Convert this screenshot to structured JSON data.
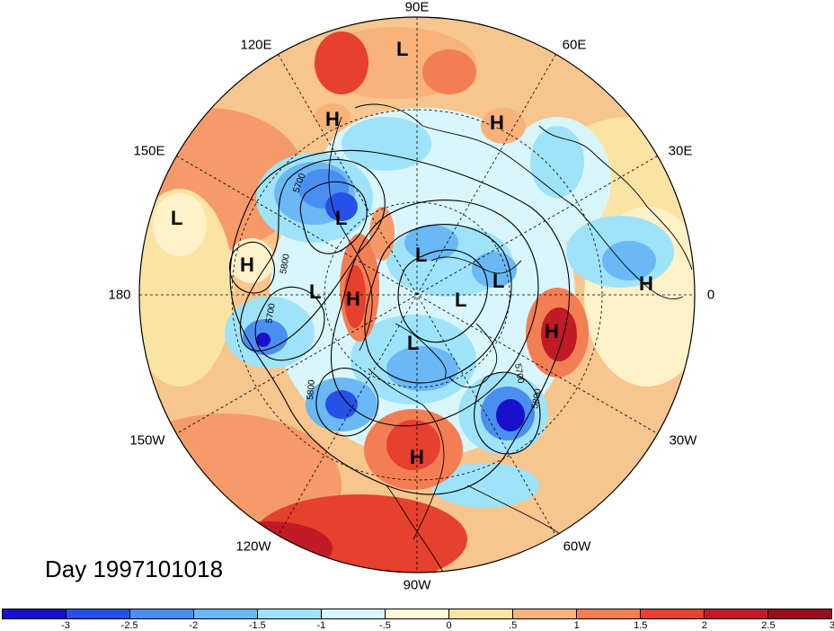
{
  "map": {
    "longitude_labels": [
      {
        "text": "90E"
      },
      {
        "text": "60E"
      },
      {
        "text": "30E"
      },
      {
        "text": "0"
      },
      {
        "text": "30W"
      },
      {
        "text": "60W"
      },
      {
        "text": "90W"
      },
      {
        "text": "120W"
      },
      {
        "text": "150W"
      },
      {
        "text": "180"
      },
      {
        "text": "150E"
      },
      {
        "text": "120E"
      }
    ],
    "pressure_centers": [
      "L",
      "H",
      "H",
      "L",
      "L",
      "H",
      "L",
      "L",
      "L",
      "H",
      "H",
      "L",
      "L",
      "H",
      "H"
    ],
    "contour_labels": [
      "5700",
      "5800",
      "5700",
      "5800",
      "5700",
      "5800"
    ]
  },
  "caption": {
    "day": "Day 1997101018"
  },
  "colorbar": {
    "colors": [
      "#1a0fcc",
      "#2650e6",
      "#4a8ef0",
      "#6ab8f5",
      "#9ee3fa",
      "#d8f6fb",
      "#fff8d8",
      "#fbe3a4",
      "#f8b27a",
      "#f47e54",
      "#e6402e",
      "#c21a26",
      "#9a0b1e"
    ],
    "ticks": [
      "-3",
      "-2.5",
      "-2",
      "-1.5",
      "-1",
      "-.5",
      "0",
      ".5",
      "1",
      "1.5",
      "2",
      "2.5",
      "3"
    ]
  }
}
